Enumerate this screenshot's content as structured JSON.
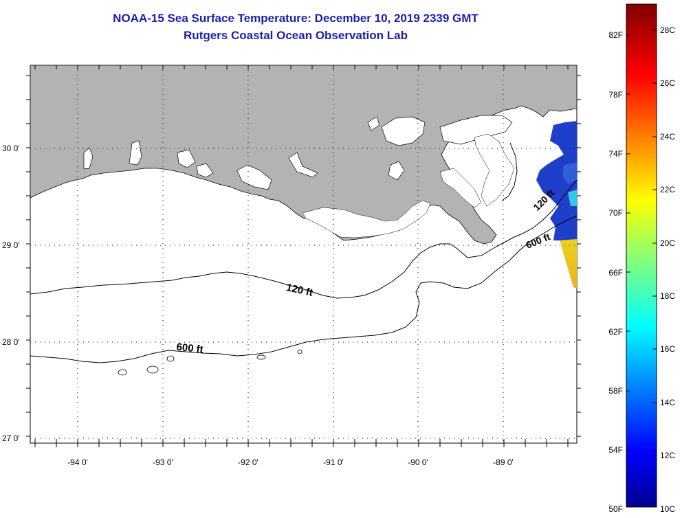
{
  "header": {
    "title": "NOAA-15 Sea Surface Temperature:  December 10, 2019 2339 GMT",
    "subtitle": "Rutgers Coastal Ocean Observation Lab"
  },
  "map": {
    "lat_labels": [
      "30 0'",
      "29 0'",
      "28 0'",
      "27 0'"
    ],
    "lon_labels": [
      "-94 0'",
      "-93 0'",
      "-92 0'",
      "-91 0'",
      "-90 0'",
      "-89 0'"
    ],
    "contour_labels": {
      "c120_main": "120 ft",
      "c600_main": "600 ft",
      "c120_east": "120 ft",
      "c600_east": "600 ft"
    },
    "colors": {
      "land": "#b3b3b3",
      "sst_cold": "#1d3fc9",
      "sst_warm": "#f2c21a"
    }
  },
  "colorbar": {
    "fahrenheit": [
      "82F",
      "78F",
      "74F",
      "70F",
      "66F",
      "62F",
      "58F",
      "54F",
      "50F"
    ],
    "celsius": [
      "28C",
      "26C",
      "24C",
      "22C",
      "20C",
      "18C",
      "16C",
      "14C",
      "12C",
      "10C"
    ],
    "range_c": [
      10,
      29
    ],
    "colormap": "jet"
  }
}
